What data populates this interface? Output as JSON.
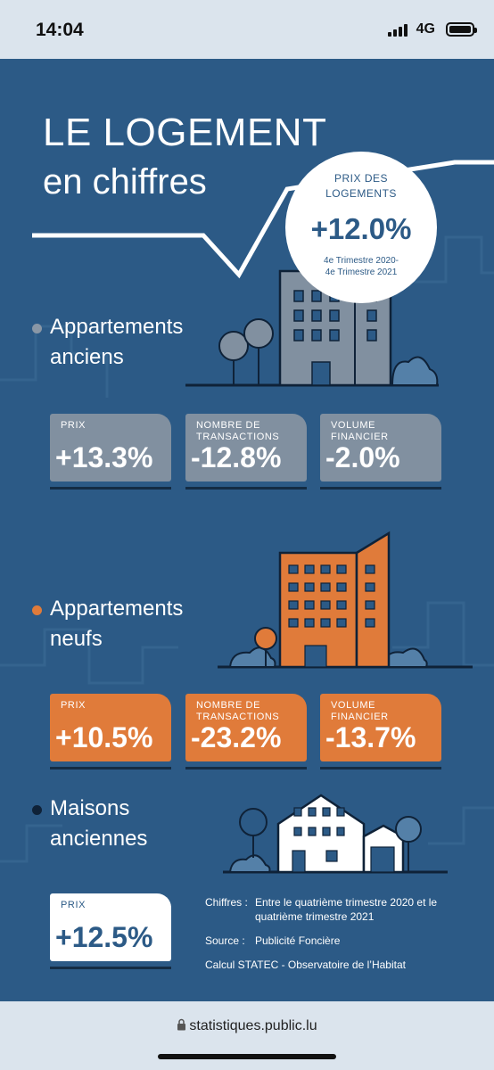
{
  "status_bar": {
    "time": "14:04",
    "network": "4G"
  },
  "infographic": {
    "title_line1": "LE LOGEMENT",
    "title_line2": "en chiffres",
    "price_circle": {
      "label_line1": "PRIX DES",
      "label_line2": "LOGEMENTS",
      "value": "+12.0%",
      "period_line1": "4e Trimestre 2020-",
      "period_line2": "4e Trimestre 2021"
    },
    "sections": [
      {
        "title_line1": "Appartements",
        "title_line2": "anciens",
        "bullet_color": "#8a97a6",
        "cards": [
          {
            "label_line1": "PRIX",
            "label_line2": "",
            "value": "+13.3%"
          },
          {
            "label_line1": "NOMBRE DE",
            "label_line2": "TRANSACTIONS",
            "value": "-12.8%"
          },
          {
            "label_line1": "VOLUME",
            "label_line2": "FINANCIER",
            "value": "-2.0%"
          }
        ]
      },
      {
        "title_line1": "Appartements",
        "title_line2": "neufs",
        "bullet_color": "#e07b3a",
        "cards": [
          {
            "label_line1": "PRIX",
            "label_line2": "",
            "value": "+10.5%"
          },
          {
            "label_line1": "NOMBRE DE",
            "label_line2": "TRANSACTIONS",
            "value": "-23.2%"
          },
          {
            "label_line1": "VOLUME",
            "label_line2": "FINANCIER",
            "value": "-13.7%"
          }
        ]
      },
      {
        "title_line1": "Maisons",
        "title_line2": "anciennes",
        "bullet_color": "#0f2238",
        "cards": [
          {
            "label_line1": "PRIX",
            "label_line2": "",
            "value": "+12.5%"
          }
        ]
      }
    ],
    "notes": {
      "chiffres_label": "Chiffres :",
      "chiffres_line1": "Entre le quatrième trimestre 2020 et le",
      "chiffres_line2": "quatrième trimestre 2021",
      "source_label": "Source :",
      "source_value": "Publicité Foncière",
      "calcul": "Calcul STATEC - Observatoire de l’Habitat"
    },
    "colors": {
      "background": "#2c5a86",
      "gray": "#8190a0",
      "orange": "#e07b3a",
      "dark": "#142c44"
    }
  },
  "browser": {
    "url": "statistiques.public.lu"
  }
}
